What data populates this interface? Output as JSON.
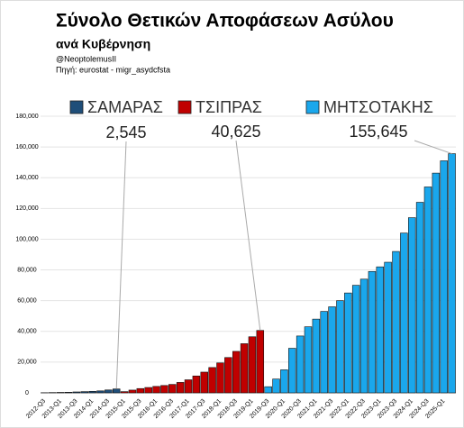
{
  "chart_data": {
    "type": "bar",
    "title": "Σύνολο Θετικών Αποφάσεων Ασύλου",
    "subtitle": "ανά Κυβέρνηση",
    "credit": "@NeoptolemusII",
    "source": "Πηγή: eurostat - migr_asydcfsta",
    "categories": [
      "2012-Q3",
      null,
      "2013-Q1",
      null,
      "2013-Q3",
      null,
      "2014-Q1",
      null,
      "2014-Q3",
      null,
      "2015-Q1",
      null,
      "2015-Q3",
      null,
      "2016-Q1",
      null,
      "2016-Q3",
      null,
      "2017-Q1",
      null,
      "2017-Q3",
      null,
      "2018-Q1",
      null,
      "2018-Q3",
      null,
      "2019-Q1",
      null,
      "2019-Q3",
      null,
      "2020-Q1",
      null,
      "2020-Q3",
      null,
      "2021-Q1",
      null,
      "2021-Q3",
      null,
      "2022-Q1",
      null,
      "2022-Q3",
      null,
      "2023-Q1",
      null,
      "2023-Q3",
      null,
      "2024-Q1",
      null,
      "2024-Q3",
      null,
      "2025-Q1",
      null
    ],
    "series": [
      {
        "name": "ΣΑΜΑΡΑΣ",
        "color": "#1f4e79",
        "values": [
          100,
          200,
          300,
          400,
          600,
          800,
          1000,
          1300,
          1900,
          2545,
          null,
          null,
          null,
          null,
          null,
          null,
          null,
          null,
          null,
          null,
          null,
          null,
          null,
          null,
          null,
          null,
          null,
          null,
          null,
          null,
          null,
          null,
          null,
          null,
          null,
          null,
          null,
          null,
          null,
          null,
          null,
          null,
          null,
          null,
          null,
          null,
          null,
          null,
          null,
          null,
          null,
          null
        ],
        "value_labels": [
          null,
          null,
          null,
          null,
          null,
          null,
          null,
          null,
          null,
          "2,545",
          null,
          null,
          null,
          null,
          null,
          null,
          null,
          null,
          null,
          null,
          null,
          null,
          null,
          null,
          null,
          null,
          null,
          null,
          null,
          null,
          null,
          null,
          null,
          null,
          null,
          null,
          null,
          null,
          null,
          null,
          null,
          null,
          null,
          null,
          null,
          null,
          null,
          null,
          null,
          null,
          null,
          null
        ]
      },
      {
        "name": "ΤΣΙΠΡΑΣ",
        "color": "#c00000",
        "values": [
          null,
          null,
          null,
          null,
          null,
          null,
          null,
          null,
          null,
          null,
          800,
          1800,
          2800,
          3500,
          4200,
          4800,
          5500,
          6800,
          8500,
          11000,
          13500,
          16500,
          19500,
          23000,
          27000,
          32000,
          36500,
          40625,
          null,
          null,
          null,
          null,
          null,
          null,
          null,
          null,
          null,
          null,
          null,
          null,
          null,
          null,
          null,
          null,
          null,
          null,
          null,
          null,
          null,
          null,
          null,
          null
        ],
        "value_labels": [
          null,
          null,
          null,
          null,
          null,
          null,
          null,
          null,
          null,
          null,
          null,
          null,
          null,
          null,
          null,
          null,
          null,
          null,
          null,
          null,
          null,
          null,
          null,
          null,
          null,
          null,
          null,
          "40,625",
          null,
          null,
          null,
          null,
          null,
          null,
          null,
          null,
          null,
          null,
          null,
          null,
          null,
          null,
          null,
          null,
          null,
          null,
          null,
          null,
          null,
          null,
          null,
          null
        ]
      },
      {
        "name": "ΜΗΤΣΟΤΑΚΗΣ",
        "color": "#1aa7ec",
        "values": [
          null,
          null,
          null,
          null,
          null,
          null,
          null,
          null,
          null,
          null,
          null,
          null,
          null,
          null,
          null,
          null,
          null,
          null,
          null,
          null,
          null,
          null,
          null,
          null,
          null,
          null,
          null,
          null,
          4000,
          9000,
          15000,
          29000,
          37000,
          43000,
          48000,
          53000,
          56000,
          60000,
          65000,
          70000,
          74000,
          79000,
          82000,
          85000,
          92000,
          104000,
          114000,
          124000,
          134000,
          143000,
          151000,
          155645
        ],
        "value_labels": [
          null,
          null,
          null,
          null,
          null,
          null,
          null,
          null,
          null,
          null,
          null,
          null,
          null,
          null,
          null,
          null,
          null,
          null,
          null,
          null,
          null,
          null,
          null,
          null,
          null,
          null,
          null,
          null,
          null,
          null,
          null,
          null,
          null,
          null,
          null,
          null,
          null,
          null,
          null,
          null,
          null,
          null,
          null,
          null,
          null,
          null,
          null,
          null,
          null,
          null,
          null,
          "155,645"
        ]
      }
    ],
    "ylim": [
      0,
      180000
    ],
    "yticks": [
      0,
      {
        "value": 20000,
        "label": "20,000"
      },
      {
        "value": 40000,
        "label": "40,000"
      },
      {
        "value": 60000,
        "label": "60,000"
      },
      {
        "value": 80000,
        "label": "80,000"
      },
      {
        "value": 100000,
        "label": "100,000"
      },
      {
        "value": 120000,
        "label": "120,000"
      },
      {
        "value": 140000,
        "label": "140,000"
      },
      {
        "value": 160000,
        "label": "160,000"
      },
      {
        "value": 180000,
        "label": "180,000"
      }
    ],
    "grid": true
  }
}
